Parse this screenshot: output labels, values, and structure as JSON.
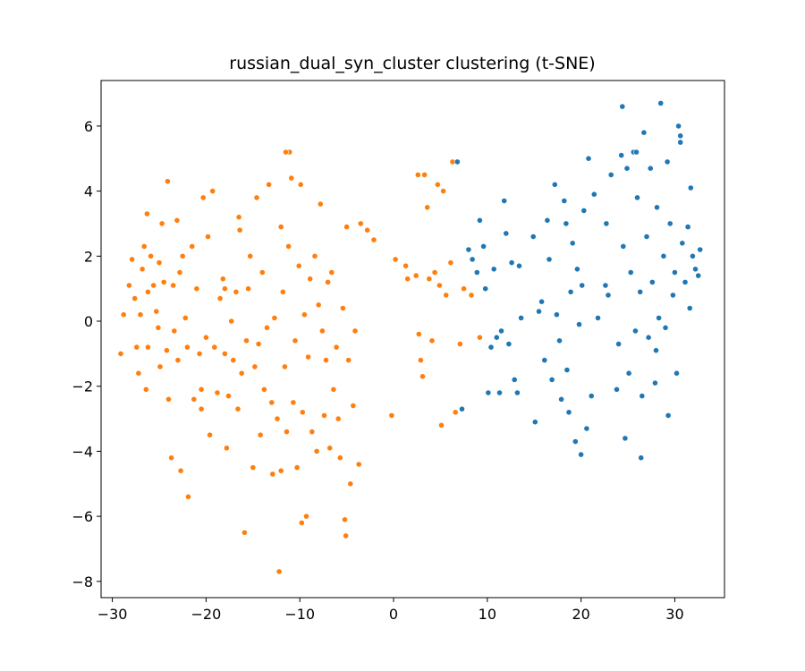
{
  "chart_data": {
    "type": "scatter",
    "title": "russian_dual_syn_cluster clustering (t-SNE)",
    "xlabel": "",
    "ylabel": "",
    "xlim": [
      -31.2,
      35.3
    ],
    "ylim": [
      -8.5,
      7.4
    ],
    "xticks": [
      -30,
      -20,
      -10,
      0,
      10,
      20,
      30
    ],
    "xtick_labels": [
      "−30",
      "−20",
      "−10",
      "0",
      "10",
      "20",
      "30"
    ],
    "yticks": [
      -8,
      -6,
      -4,
      -2,
      0,
      2,
      4,
      6
    ],
    "ytick_labels": [
      "−8",
      "−6",
      "−4",
      "−2",
      "0",
      "2",
      "4",
      "6"
    ],
    "grid": false,
    "legend": "none",
    "series": [
      {
        "color": "#ff7f0e",
        "points": [
          [
            -28.8,
            0.2
          ],
          [
            -29.1,
            -1.0
          ],
          [
            -28.2,
            1.1
          ],
          [
            -27.9,
            1.9
          ],
          [
            -27.6,
            0.7
          ],
          [
            -27.4,
            -0.8
          ],
          [
            -27.2,
            -1.6
          ],
          [
            -27.0,
            0.2
          ],
          [
            -26.8,
            1.6
          ],
          [
            -26.6,
            2.3
          ],
          [
            -26.3,
            3.3
          ],
          [
            -26.2,
            -0.8
          ],
          [
            -26.4,
            -2.1
          ],
          [
            -25.9,
            2.0
          ],
          [
            -25.6,
            1.1
          ],
          [
            -25.3,
            0.3
          ],
          [
            -25.1,
            -0.2
          ],
          [
            -25.0,
            1.8
          ],
          [
            -24.9,
            -1.4
          ],
          [
            -24.7,
            3.0
          ],
          [
            -24.5,
            1.2
          ],
          [
            -24.2,
            -0.9
          ],
          [
            -24.0,
            -2.4
          ],
          [
            -23.7,
            -4.2
          ],
          [
            -23.5,
            1.1
          ],
          [
            -23.4,
            -0.3
          ],
          [
            -23.1,
            3.1
          ],
          [
            -23.0,
            -1.2
          ],
          [
            -22.8,
            1.5
          ],
          [
            -22.7,
            -4.6
          ],
          [
            -22.5,
            2.0
          ],
          [
            -22.2,
            0.1
          ],
          [
            -22.0,
            -0.8
          ],
          [
            -21.9,
            -5.4
          ],
          [
            -21.5,
            2.3
          ],
          [
            -21.3,
            -2.4
          ],
          [
            -21.0,
            1.0
          ],
          [
            -20.7,
            -1.0
          ],
          [
            -20.5,
            -2.7
          ],
          [
            -20.3,
            3.8
          ],
          [
            -20.0,
            -0.5
          ],
          [
            -19.8,
            2.6
          ],
          [
            -19.6,
            -3.5
          ],
          [
            -19.3,
            4.0
          ],
          [
            -19.1,
            -0.8
          ],
          [
            -18.8,
            -2.2
          ],
          [
            -18.5,
            0.7
          ],
          [
            -18.2,
            1.3
          ],
          [
            -18.0,
            -1.0
          ],
          [
            -17.8,
            -3.9
          ],
          [
            -17.6,
            -2.3
          ],
          [
            -17.3,
            0.0
          ],
          [
            -17.1,
            -1.2
          ],
          [
            -16.8,
            0.9
          ],
          [
            -16.6,
            -2.7
          ],
          [
            -16.4,
            2.8
          ],
          [
            -16.2,
            -1.6
          ],
          [
            -15.9,
            -6.5
          ],
          [
            -15.7,
            -0.6
          ],
          [
            -15.5,
            1.0
          ],
          [
            -15.3,
            2.0
          ],
          [
            -15.0,
            -4.5
          ],
          [
            -14.8,
            -1.4
          ],
          [
            -14.6,
            3.8
          ],
          [
            -14.4,
            -0.7
          ],
          [
            -14.2,
            -3.5
          ],
          [
            -14.0,
            1.5
          ],
          [
            -13.8,
            -2.1
          ],
          [
            -13.5,
            -0.2
          ],
          [
            -13.3,
            4.2
          ],
          [
            -13.0,
            -2.5
          ],
          [
            -12.9,
            -4.7
          ],
          [
            -12.7,
            0.1
          ],
          [
            -12.4,
            -3.0
          ],
          [
            -12.2,
            -7.7
          ],
          [
            -12.0,
            2.9
          ],
          [
            -11.8,
            0.9
          ],
          [
            -11.6,
            -1.4
          ],
          [
            -11.4,
            -3.4
          ],
          [
            -11.2,
            2.3
          ],
          [
            -11.1,
            5.2
          ],
          [
            -10.9,
            4.4
          ],
          [
            -10.7,
            -2.5
          ],
          [
            -10.5,
            -0.6
          ],
          [
            -10.3,
            -4.5
          ],
          [
            -10.1,
            1.7
          ],
          [
            -9.9,
            4.2
          ],
          [
            -9.7,
            -2.8
          ],
          [
            -9.5,
            0.2
          ],
          [
            -9.3,
            -6.0
          ],
          [
            -9.1,
            -1.1
          ],
          [
            -8.9,
            1.3
          ],
          [
            -8.7,
            -3.4
          ],
          [
            -8.4,
            2.0
          ],
          [
            -8.2,
            -4.0
          ],
          [
            -8.0,
            0.5
          ],
          [
            -7.8,
            3.6
          ],
          [
            -7.6,
            -0.3
          ],
          [
            -7.4,
            -2.9
          ],
          [
            -7.2,
            -1.2
          ],
          [
            -7.0,
            1.2
          ],
          [
            -6.8,
            -3.9
          ],
          [
            -6.6,
            1.5
          ],
          [
            -6.4,
            -2.1
          ],
          [
            -6.1,
            -0.8
          ],
          [
            -5.9,
            -3.0
          ],
          [
            -5.7,
            -4.2
          ],
          [
            -5.4,
            0.4
          ],
          [
            -5.2,
            -6.1
          ],
          [
            -5.0,
            2.9
          ],
          [
            -4.8,
            -1.2
          ],
          [
            -4.6,
            -5.0
          ],
          [
            -4.3,
            -2.6
          ],
          [
            -4.1,
            -0.3
          ],
          [
            -3.7,
            -4.4
          ],
          [
            -3.5,
            3.0
          ],
          [
            -2.8,
            2.8
          ],
          [
            -2.1,
            2.5
          ],
          [
            -0.2,
            -2.9
          ],
          [
            0.2,
            1.9
          ],
          [
            1.3,
            1.7
          ],
          [
            1.5,
            1.3
          ],
          [
            2.4,
            1.4
          ],
          [
            2.6,
            4.5
          ],
          [
            2.7,
            -0.4
          ],
          [
            2.9,
            -1.2
          ],
          [
            3.1,
            -1.7
          ],
          [
            3.3,
            4.5
          ],
          [
            3.6,
            3.5
          ],
          [
            3.8,
            1.3
          ],
          [
            4.1,
            -0.6
          ],
          [
            4.4,
            1.5
          ],
          [
            4.7,
            4.2
          ],
          [
            4.9,
            1.1
          ],
          [
            5.1,
            -3.2
          ],
          [
            5.3,
            4.0
          ],
          [
            5.6,
            0.8
          ],
          [
            6.1,
            1.8
          ],
          [
            6.3,
            4.9
          ],
          [
            6.6,
            -2.8
          ],
          [
            7.1,
            -0.7
          ],
          [
            7.5,
            1.0
          ],
          [
            8.3,
            0.8
          ],
          [
            9.2,
            -0.5
          ],
          [
            -20.5,
            -2.1
          ],
          [
            -24.1,
            4.3
          ],
          [
            -11.5,
            5.2
          ],
          [
            -16.5,
            3.2
          ],
          [
            -26.2,
            0.9
          ],
          [
            -12.0,
            -4.6
          ],
          [
            -5.1,
            -6.6
          ],
          [
            -9.8,
            -6.2
          ],
          [
            -18.0,
            1.0
          ]
        ]
      },
      {
        "color": "#1f77b4",
        "points": [
          [
            6.8,
            4.9
          ],
          [
            7.3,
            -2.7
          ],
          [
            8.0,
            2.2
          ],
          [
            8.4,
            1.9
          ],
          [
            8.9,
            1.5
          ],
          [
            9.2,
            3.1
          ],
          [
            9.6,
            2.3
          ],
          [
            9.8,
            1.0
          ],
          [
            10.1,
            -2.2
          ],
          [
            10.4,
            -0.8
          ],
          [
            10.7,
            1.6
          ],
          [
            11.0,
            -0.5
          ],
          [
            11.3,
            -2.2
          ],
          [
            11.5,
            -0.3
          ],
          [
            11.8,
            3.7
          ],
          [
            12.0,
            2.7
          ],
          [
            12.3,
            -0.7
          ],
          [
            12.6,
            1.8
          ],
          [
            12.9,
            -1.8
          ],
          [
            13.2,
            -2.2
          ],
          [
            13.4,
            1.7
          ],
          [
            13.6,
            0.1
          ],
          [
            14.9,
            2.6
          ],
          [
            15.1,
            -3.1
          ],
          [
            15.5,
            0.3
          ],
          [
            15.8,
            0.6
          ],
          [
            16.1,
            -1.2
          ],
          [
            16.4,
            3.1
          ],
          [
            16.6,
            1.9
          ],
          [
            16.9,
            -1.8
          ],
          [
            17.2,
            4.2
          ],
          [
            17.4,
            0.2
          ],
          [
            17.7,
            -0.6
          ],
          [
            17.9,
            -2.4
          ],
          [
            18.2,
            3.7
          ],
          [
            18.5,
            -1.5
          ],
          [
            18.7,
            -2.8
          ],
          [
            18.9,
            0.9
          ],
          [
            19.1,
            2.4
          ],
          [
            19.4,
            -3.7
          ],
          [
            19.6,
            1.6
          ],
          [
            19.8,
            -0.1
          ],
          [
            20.1,
            1.1
          ],
          [
            20.3,
            3.4
          ],
          [
            20.6,
            -3.3
          ],
          [
            20.8,
            5.0
          ],
          [
            21.1,
            -2.3
          ],
          [
            21.4,
            3.9
          ],
          [
            21.8,
            0.1
          ],
          [
            22.7,
            3.0
          ],
          [
            22.9,
            0.8
          ],
          [
            23.2,
            4.5
          ],
          [
            24.0,
            -0.7
          ],
          [
            24.3,
            5.1
          ],
          [
            24.5,
            2.3
          ],
          [
            24.7,
            -3.6
          ],
          [
            24.9,
            4.7
          ],
          [
            25.1,
            -1.6
          ],
          [
            25.3,
            1.5
          ],
          [
            25.6,
            5.2
          ],
          [
            25.8,
            -0.3
          ],
          [
            26.0,
            3.8
          ],
          [
            26.3,
            0.9
          ],
          [
            26.5,
            -2.3
          ],
          [
            26.7,
            5.8
          ],
          [
            27.0,
            2.6
          ],
          [
            27.2,
            -0.5
          ],
          [
            27.4,
            4.7
          ],
          [
            27.6,
            1.2
          ],
          [
            27.9,
            -1.9
          ],
          [
            28.1,
            3.5
          ],
          [
            28.3,
            0.1
          ],
          [
            28.5,
            6.7
          ],
          [
            28.8,
            2.0
          ],
          [
            29.0,
            -0.2
          ],
          [
            29.2,
            4.9
          ],
          [
            29.5,
            3.0
          ],
          [
            29.8,
            0.8
          ],
          [
            30.0,
            1.5
          ],
          [
            30.2,
            -1.6
          ],
          [
            30.4,
            6.0
          ],
          [
            30.6,
            5.5
          ],
          [
            30.8,
            2.4
          ],
          [
            31.1,
            1.2
          ],
          [
            31.4,
            2.9
          ],
          [
            31.7,
            4.1
          ],
          [
            31.9,
            2.0
          ],
          [
            32.2,
            1.6
          ],
          [
            32.5,
            1.4
          ],
          [
            32.7,
            2.2
          ],
          [
            24.4,
            6.6
          ],
          [
            29.3,
            -2.9
          ],
          [
            26.4,
            -4.2
          ],
          [
            20.0,
            -4.1
          ],
          [
            23.8,
            -2.1
          ],
          [
            28.0,
            -0.9
          ],
          [
            18.4,
            3.0
          ],
          [
            22.6,
            1.1
          ],
          [
            30.6,
            5.7
          ],
          [
            25.9,
            5.2
          ],
          [
            31.6,
            0.4
          ]
        ]
      }
    ]
  }
}
